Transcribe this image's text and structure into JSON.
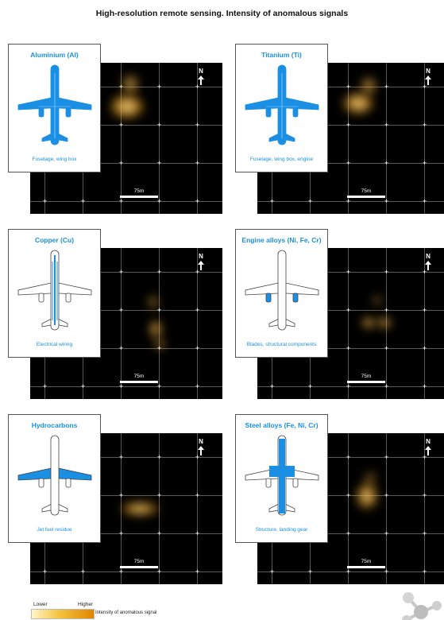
{
  "title": "High-resolution remote sensing. Intensity of anomalous signals",
  "north_label": "N",
  "scale_label": "75m",
  "colors": {
    "accent_blue": "#1a8fe3",
    "map_background": "#000000",
    "signal_low": "#fff6c8",
    "signal_high": "#e08600"
  },
  "panels": [
    {
      "name": "Aluminium (Al)",
      "caption": "Fuselage, wing box",
      "highlight": "full"
    },
    {
      "name": "Titanium (Ti)",
      "caption": "Fuselage, wing box, engine",
      "highlight": "full"
    },
    {
      "name": "Copper (Cu)",
      "caption": "Electrical wiring",
      "highlight": "wiring"
    },
    {
      "name": "Engine alloys (Ni, Fe, Cr)",
      "caption": "Blades, structural components",
      "highlight": "engines"
    },
    {
      "name": "Hydrocarbons",
      "caption": "Jet fuel residue",
      "highlight": "wings"
    },
    {
      "name": "Steel alloys (Fe, Ni, Cr)",
      "caption": "Structure, landing gear",
      "highlight": "structure"
    }
  ],
  "legend": {
    "low_label": "Lower",
    "high_label": "Higher",
    "description": "Intensity of anomalous signal"
  },
  "decorations": {
    "grid_tick_icon": "plus-icon",
    "north_icon": "north-arrow-icon",
    "corner_icon": "molecule-icon"
  }
}
